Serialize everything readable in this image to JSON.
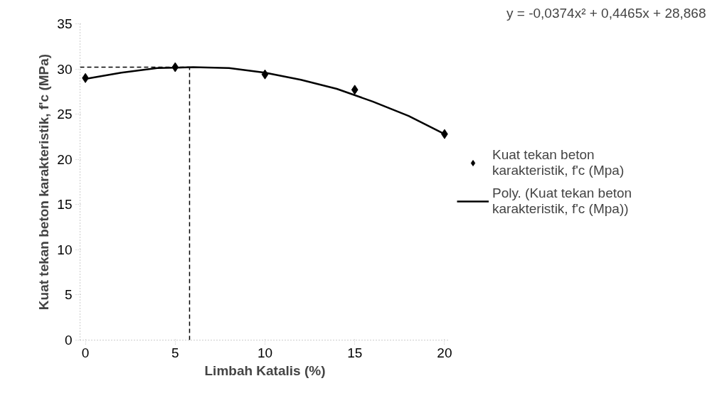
{
  "chart_data": {
    "type": "scatter",
    "xlabel": "Limbah Katalis (%)",
    "ylabel": "Kuat tekan beton karakteristik, f'c (MPa)",
    "x": [
      0,
      5,
      10,
      15,
      20
    ],
    "xlim": [
      -0.3,
      20.3
    ],
    "xticks": [
      0,
      5,
      10,
      15,
      20
    ],
    "ylim": [
      0,
      35
    ],
    "yticks": [
      0,
      5,
      10,
      15,
      20,
      25,
      30,
      35
    ],
    "series": [
      {
        "name": "Kuat tekan beton karakteristik, f'c (Mpa)",
        "color": "#000000",
        "values": [
          29.0,
          30.2,
          29.4,
          27.7,
          22.8
        ]
      },
      {
        "name": "Poly. (Kuat tekan beton karakteristik, f'c (Mpa))",
        "type": "line",
        "marker": "none",
        "color": "#000000",
        "x": [
          0,
          2,
          4,
          6,
          8,
          10,
          12,
          14,
          16,
          18,
          20
        ],
        "values": [
          28.9,
          29.6,
          30.1,
          30.2,
          30.1,
          29.6,
          28.8,
          27.8,
          26.4,
          24.8,
          22.8
        ]
      }
    ],
    "ref_lines": [
      {
        "axis": "x",
        "value": 5.8,
        "color": "#000000",
        "line_style": "dashed"
      },
      {
        "axis": "y",
        "value": 30.2,
        "color": "#000000",
        "line_style": "dashed"
      }
    ],
    "annotations": [
      "y = -0,0374x² + 0,4465x + 28,868"
    ],
    "marker": "diamond",
    "grid": false,
    "legend": "right"
  }
}
